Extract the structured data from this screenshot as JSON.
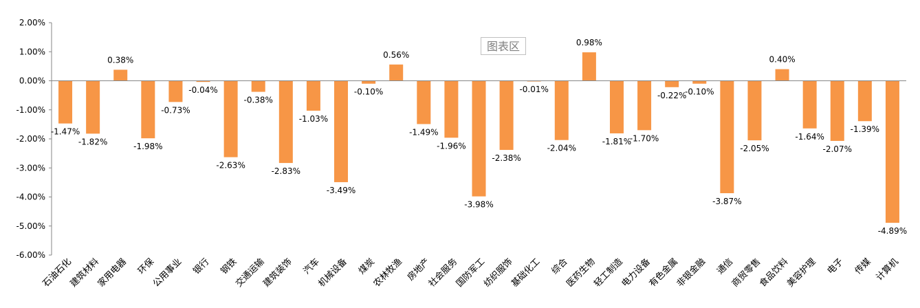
{
  "chart_data": {
    "type": "bar",
    "categories": [
      "石油石化",
      "建筑材料",
      "家用电器",
      "环保",
      "公用事业",
      "银行",
      "钢铁",
      "交通运输",
      "建筑装饰",
      "汽车",
      "机械设备",
      "煤炭",
      "农林牧渔",
      "房地产",
      "社会服务",
      "国防军工",
      "纺织服饰",
      "基础化工",
      "综合",
      "医药生物",
      "轻工制造",
      "电力设备",
      "有色金属",
      "非银金融",
      "通信",
      "商贸零售",
      "食品饮料",
      "美容护理",
      "电子",
      "传媒",
      "计算机"
    ],
    "values": [
      -1.47,
      -1.82,
      0.38,
      -1.98,
      -0.73,
      -0.04,
      -2.63,
      -0.38,
      -2.83,
      -1.03,
      -3.49,
      -0.1,
      0.56,
      -1.49,
      -1.96,
      -3.98,
      -2.38,
      -0.01,
      -2.04,
      0.98,
      -1.81,
      -1.7,
      -0.22,
      -0.1,
      -3.87,
      -2.05,
      0.4,
      -1.64,
      -2.07,
      -1.39,
      -4.89
    ],
    "data_labels": [
      "-1.47%",
      "-1.82%",
      "0.38%",
      "-1.98%",
      "-0.73%",
      "-0.04%",
      "-2.63%",
      "-0.38%",
      "-2.83%",
      "-1.03%",
      "-3.49%",
      "-0.10%",
      "0.56%",
      "-1.49%",
      "-1.96%",
      "-3.98%",
      "-2.38%",
      "-0.01%",
      "-2.04%",
      "0.98%",
      "-1.81%",
      "-1.70%",
      "-0.22%",
      "-0.10%",
      "-3.87%",
      "-2.05%",
      "0.40%",
      "-1.64%",
      "-2.07%",
      "-1.39%",
      "-4.89%"
    ],
    "y_ticks": [
      2,
      1,
      0,
      -1,
      -2,
      -3,
      -4,
      -5,
      -6
    ],
    "y_tick_labels": [
      "2.00%",
      "1.00%",
      "0.00%",
      "-1.00%",
      "-2.00%",
      "-3.00%",
      "-4.00%",
      "-5.00%",
      "-6.00%"
    ],
    "ylim": [
      -6,
      2
    ],
    "title": "",
    "xlabel": "",
    "ylabel": "",
    "bar_color": "#F79646",
    "axis_color": "#868686",
    "grid": false,
    "legend": "none"
  },
  "watermark_label": "图表区"
}
